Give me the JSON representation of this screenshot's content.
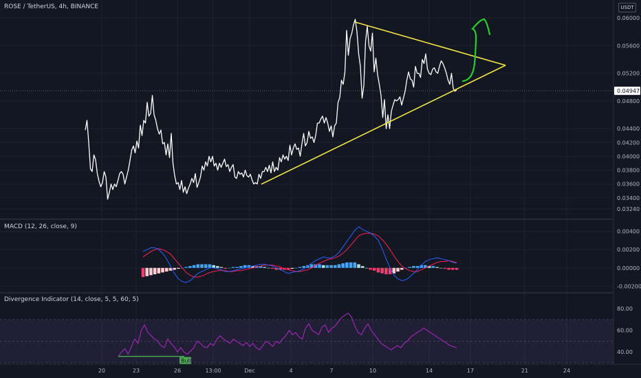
{
  "header": {
    "symbol_title": "ROSE / TetherUS, 4h, BINANCE",
    "currency": "USDT"
  },
  "panes": {
    "macd_title": "MACD (12, 26, close, 9)",
    "div_title": "Divergence Indicator (14, close, 5, 5, 60, 5)"
  },
  "colors": {
    "background": "#131722",
    "price_line": "#ffffff",
    "triangle": "#f5e642",
    "drawing_arrow": "#22d12a",
    "macd_line": "#2962ff",
    "signal_line": "#ff1f5a",
    "hist_pos": "#42a5f5",
    "hist_neg": "#f23c6e",
    "rsi_line": "#9c27b0",
    "bull": "#4caf50"
  },
  "chart_data": [
    {
      "type": "line",
      "pane": "price",
      "ylim": [
        0.0316,
        0.0612
      ],
      "yticks": [
        "0.06000",
        "0.05600",
        "0.05200",
        "0.04800",
        "0.04400",
        "0.04200",
        "0.04000",
        "0.03800",
        "0.03600",
        "0.03400",
        "0.03240"
      ],
      "current_price": "0.04947",
      "xticks": [
        "20",
        "23",
        "26",
        "13:00",
        "Dec",
        "4",
        "7",
        "10",
        "14",
        "17",
        "21",
        "24"
      ],
      "series": [
        {
          "values": [
            0.0438,
            0.0452,
            0.042,
            0.0382,
            0.0378,
            0.0402,
            0.0395,
            0.0375,
            0.0364,
            0.0356,
            0.0362,
            0.0378,
            0.037,
            0.0338,
            0.0348,
            0.036,
            0.0352,
            0.036,
            0.0356,
            0.0365,
            0.0375,
            0.0378,
            0.0374,
            0.036,
            0.037,
            0.038,
            0.0394,
            0.0409,
            0.0415,
            0.0405,
            0.0422,
            0.0412,
            0.0445,
            0.043,
            0.0452,
            0.0448,
            0.0478,
            0.0458,
            0.0462,
            0.0488,
            0.046,
            0.0452,
            0.044,
            0.0432,
            0.0438,
            0.0418,
            0.042,
            0.0402,
            0.0418,
            0.0398,
            0.0433,
            0.039,
            0.0372,
            0.036,
            0.0362,
            0.0352,
            0.0365,
            0.0348,
            0.0356,
            0.0346,
            0.0354,
            0.036,
            0.0368,
            0.0362,
            0.0375,
            0.0355,
            0.0362,
            0.037,
            0.0386,
            0.038,
            0.0392,
            0.0386,
            0.04,
            0.0392,
            0.04,
            0.0386,
            0.039,
            0.038,
            0.039,
            0.0384,
            0.039,
            0.0396,
            0.0385,
            0.0388,
            0.0378,
            0.0384,
            0.0388,
            0.037,
            0.0368,
            0.0378,
            0.0374,
            0.0376,
            0.037,
            0.038,
            0.0372,
            0.037,
            0.0374,
            0.0366,
            0.036,
            0.0362,
            0.036,
            0.0374,
            0.0368,
            0.0378,
            0.0378,
            0.0384,
            0.0378,
            0.0387,
            0.0376,
            0.0392,
            0.0378,
            0.0384,
            0.038,
            0.0398,
            0.0392,
            0.0402,
            0.0396,
            0.04,
            0.0394,
            0.0416,
            0.0402,
            0.0412,
            0.0418,
            0.041,
            0.0412,
            0.04,
            0.0418,
            0.0433,
            0.0415,
            0.042,
            0.0436,
            0.0426,
            0.0428,
            0.042,
            0.043,
            0.0448,
            0.0448,
            0.0454,
            0.0458,
            0.0448,
            0.0456,
            0.0448,
            0.0436,
            0.0444,
            0.0428,
            0.0444,
            0.0448,
            0.0478,
            0.0485,
            0.051,
            0.0504,
            0.0522,
            0.0582,
            0.0546,
            0.057,
            0.0578,
            0.059,
            0.0598,
            0.058,
            0.0548,
            0.053,
            0.0484,
            0.0502,
            0.0566,
            0.0588,
            0.056,
            0.0552,
            0.0578,
            0.0522,
            0.0542,
            0.0518,
            0.0504,
            0.0488,
            0.0456,
            0.0482,
            0.044,
            0.046,
            0.044,
            0.0465,
            0.0474,
            0.0482,
            0.048,
            0.0482,
            0.0486,
            0.0474,
            0.0484,
            0.0494,
            0.051,
            0.0522,
            0.0512,
            0.051,
            0.05,
            0.053,
            0.052,
            0.052,
            0.0514,
            0.054,
            0.0534,
            0.0548,
            0.0526,
            0.052,
            0.0518,
            0.0526,
            0.0528,
            0.0522,
            0.052,
            0.053,
            0.0538,
            0.0534,
            0.0528,
            0.052,
            0.051,
            0.0504,
            0.052,
            0.0498,
            0.0494,
            0.0496
          ]
        }
      ]
    },
    {
      "type": "bar",
      "pane": "macd",
      "ylim": [
        -0.0025,
        0.0048
      ],
      "yticks": [
        "0.00400",
        "0.00200",
        "0.00000",
        "-0.00200"
      ],
      "series": [
        {
          "name": "MACD",
          "values": [
            0.0018,
            0.002,
            0.0022,
            0.0022,
            0.002,
            0.0016,
            0.001,
            0.0002,
            -0.0006,
            -0.0012,
            -0.0015,
            -0.0016,
            -0.0014,
            -0.001,
            -0.0006,
            -0.0004,
            -0.0002,
            0.0,
            0.0,
            -0.0001,
            -0.0002,
            -0.0004,
            -0.0004,
            -0.0003,
            -0.0002,
            -0.0001,
            0.0,
            0.0001,
            0.0002,
            0.0003,
            0.0004,
            0.0004,
            0.0003,
            0.0002,
            0.0,
            -0.0002,
            -0.0004,
            -0.0006,
            -0.0005,
            -0.0004,
            -0.0003,
            -0.0001,
            0.0002,
            0.0005,
            0.0008,
            0.001,
            0.0012,
            0.0011,
            0.0011,
            0.0013,
            0.0017,
            0.0023,
            0.0029,
            0.0035,
            0.0041,
            0.0045,
            0.0042,
            0.004,
            0.0038,
            0.0035,
            0.003,
            0.0021,
            0.001,
            0.0,
            -0.0008,
            -0.0012,
            -0.0014,
            -0.0013,
            -0.001,
            -0.0006,
            -0.0002,
            0.0003,
            0.0007,
            0.0009,
            0.001,
            0.0011,
            0.001,
            0.0009,
            0.0008,
            0.0006,
            0.0005
          ]
        },
        {
          "name": "Signal",
          "values": [
            0.0012,
            0.0015,
            0.0018,
            0.002,
            0.0021,
            0.002,
            0.0018,
            0.0015,
            0.001,
            0.0005,
            0.0,
            -0.0005,
            -0.0008,
            -0.001,
            -0.001,
            -0.0009,
            -0.0007,
            -0.0005,
            -0.0004,
            -0.0003,
            -0.0003,
            -0.0003,
            -0.0004,
            -0.0004,
            -0.0003,
            -0.0003,
            -0.0002,
            -0.0001,
            0.0,
            0.0001,
            0.0002,
            0.0003,
            0.0003,
            0.0003,
            0.0002,
            0.0001,
            -0.0001,
            -0.0002,
            -0.0003,
            -0.0004,
            -0.0004,
            -0.0003,
            -0.0002,
            0.0,
            0.0003,
            0.0005,
            0.0007,
            0.0009,
            0.001,
            0.0011,
            0.0013,
            0.0016,
            0.002,
            0.0025,
            0.003,
            0.0035,
            0.0037,
            0.0038,
            0.0038,
            0.0037,
            0.0035,
            0.0031,
            0.0026,
            0.002,
            0.0013,
            0.0007,
            0.0002,
            -0.0001,
            -0.0003,
            -0.0004,
            -0.0004,
            -0.0002,
            0.0,
            0.0002,
            0.0004,
            0.0006,
            0.0007,
            0.0007,
            0.0008,
            0.0007,
            0.0006
          ]
        },
        {
          "name": "Histogram",
          "values": [
            -0.001,
            -0.0009,
            -0.0008,
            -0.0007,
            -0.0006,
            -0.0005,
            -0.0004,
            -0.0003,
            -0.0002,
            -0.0001,
            0.0,
            0.0001,
            0.0002,
            0.0003,
            0.0004,
            0.0004,
            0.0004,
            0.0004,
            0.0003,
            0.0002,
            0.0001,
            -0.0001,
            0.0,
            0.0001,
            0.0001,
            0.0002,
            0.0003,
            0.0003,
            0.0002,
            0.0002,
            0.0002,
            0.0001,
            0.0,
            -0.0001,
            -0.0002,
            -0.0002,
            -0.0002,
            -0.0002,
            -0.0001,
            0.0,
            0.0001,
            0.0002,
            0.0003,
            0.0004,
            0.0004,
            0.0004,
            0.0003,
            0.0003,
            0.0003,
            0.0003,
            0.0004,
            0.0005,
            0.0006,
            0.0006,
            0.0006,
            0.0004,
            0.0002,
            0.0,
            -0.0002,
            -0.0003,
            -0.0005,
            -0.0006,
            -0.0007,
            -0.0007,
            -0.0006,
            -0.0004,
            -0.0002,
            0.0,
            0.0001,
            0.0002,
            0.0002,
            0.0003,
            0.0003,
            0.0002,
            0.0002,
            0.0001,
            0.0,
            -0.0001,
            -0.0002,
            -0.0002,
            -0.0002
          ]
        }
      ]
    },
    {
      "type": "line",
      "pane": "divergence",
      "ylim": [
        30,
        82
      ],
      "yticks": [
        "80.00",
        "60.00",
        "40.00"
      ],
      "bull_label": "Bull",
      "series": [
        {
          "values": [
            36,
            40,
            43,
            38,
            45,
            52,
            48,
            60,
            65,
            58,
            55,
            52,
            50,
            46,
            44,
            52,
            48,
            45,
            40,
            44,
            40,
            38,
            41,
            44,
            50,
            48,
            45,
            44,
            48,
            46,
            52,
            55,
            52,
            50,
            48,
            52,
            50,
            48,
            46,
            49,
            45,
            48,
            44,
            42,
            46,
            50,
            48,
            45,
            50,
            48,
            52,
            55,
            60,
            56,
            58,
            54,
            52,
            62,
            66,
            60,
            58,
            56,
            63,
            65,
            58,
            62,
            64,
            68,
            72,
            74,
            76,
            72,
            64,
            58,
            56,
            62,
            66,
            60,
            56,
            52,
            48,
            46,
            44,
            42,
            44,
            46,
            44,
            48,
            50,
            54,
            56,
            58,
            60,
            62,
            60,
            58,
            56,
            54,
            52,
            50,
            48,
            46,
            45,
            44
          ]
        }
      ]
    }
  ]
}
